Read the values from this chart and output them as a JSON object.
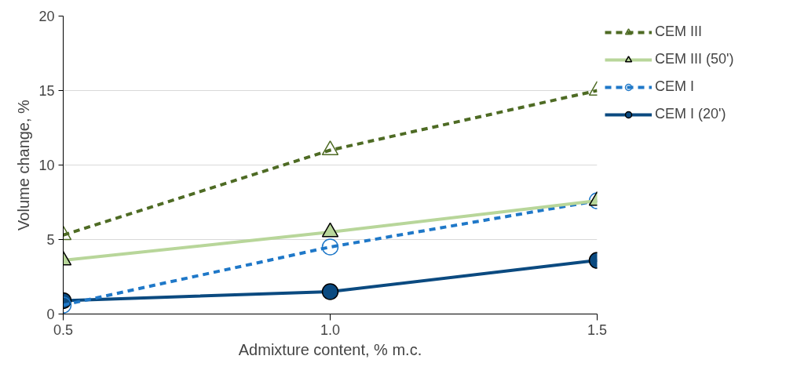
{
  "chart_data": {
    "type": "line",
    "xlabel": "Admixture content, % m.c.",
    "ylabel": "Volume change, %",
    "x": [
      0.5,
      1.0,
      1.5
    ],
    "series": [
      {
        "name": "CEM III",
        "color": "#4e6b24",
        "values": [
          5.3,
          11.0,
          15.0
        ],
        "marker": "triangle",
        "line_style": "dashed"
      },
      {
        "name": "CEM III (50')",
        "color": "#b8d69a",
        "values": [
          3.6,
          5.5,
          7.6
        ],
        "marker": "triangle",
        "line_style": "solid"
      },
      {
        "name": "CEM I",
        "color": "#1f78c8",
        "values": [
          0.6,
          4.5,
          7.6
        ],
        "marker": "circle",
        "line_style": "dashed"
      },
      {
        "name": "CEM I (20')",
        "color": "#0b4a80",
        "values": [
          0.9,
          1.5,
          3.6
        ],
        "marker": "circle",
        "line_style": "solid"
      }
    ],
    "xlim": [
      0.5,
      1.5
    ],
    "xticks": [
      {
        "value": 0.5,
        "label": "0.5"
      },
      {
        "value": 1.0,
        "label": "1.0"
      },
      {
        "value": 1.5,
        "label": "1.5"
      }
    ],
    "ylim": [
      0,
      20
    ],
    "yticks": [
      0,
      5,
      10,
      15,
      20
    ],
    "grid": "y",
    "legend": "right"
  }
}
